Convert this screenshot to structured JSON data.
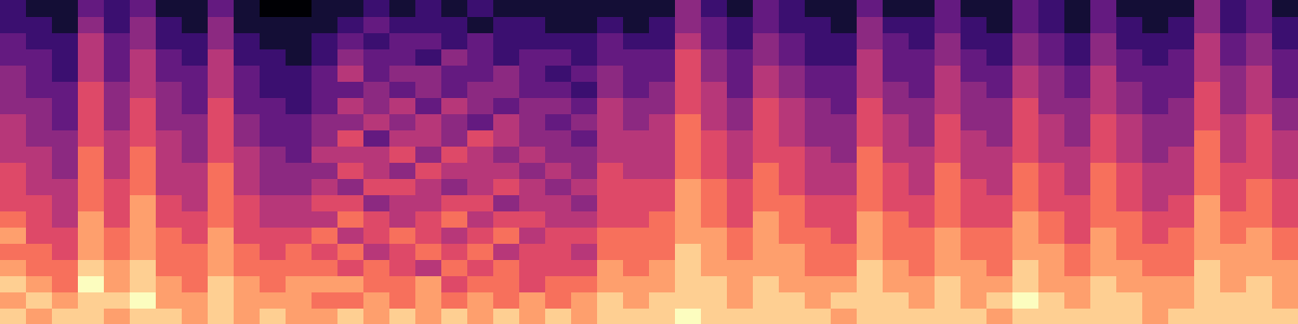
{
  "chart_data": {
    "type": "heatmap",
    "color": "magma",
    "tick_labels": false,
    "zlim": [
      0,
      10
    ],
    "values": [
      [
        9,
        8,
        9,
        8,
        7,
        8,
        7,
        6,
        6,
        6,
        5,
        5,
        5,
        4,
        4,
        4,
        3,
        3,
        2,
        2
      ],
      [
        8,
        9,
        8,
        7,
        7,
        6,
        6,
        6,
        5,
        5,
        5,
        4,
        4,
        4,
        3,
        3,
        3,
        2,
        2,
        1
      ],
      [
        9,
        8,
        7,
        7,
        6,
        6,
        5,
        5,
        5,
        4,
        4,
        4,
        3,
        3,
        3,
        2,
        2,
        2,
        1,
        1
      ],
      [
        9,
        9,
        10,
        9,
        8,
        8,
        8,
        7,
        7,
        7,
        7,
        6,
        6,
        6,
        6,
        5,
        5,
        5,
        4,
        3
      ],
      [
        8,
        9,
        8,
        8,
        7,
        7,
        6,
        6,
        6,
        5,
        5,
        5,
        4,
        4,
        4,
        3,
        3,
        3,
        2,
        2
      ],
      [
        9,
        10,
        9,
        9,
        8,
        8,
        8,
        8,
        7,
        7,
        7,
        6,
        6,
        6,
        5,
        5,
        5,
        4,
        4,
        3
      ],
      [
        9,
        8,
        8,
        7,
        7,
        7,
        6,
        6,
        5,
        5,
        5,
        5,
        4,
        4,
        4,
        3,
        3,
        2,
        2,
        1
      ],
      [
        8,
        8,
        7,
        7,
        7,
        6,
        6,
        5,
        5,
        5,
        4,
        4,
        4,
        3,
        3,
        3,
        2,
        2,
        1,
        1
      ],
      [
        9,
        9,
        9,
        8,
        8,
        8,
        7,
        7,
        7,
        7,
        6,
        6,
        6,
        6,
        5,
        5,
        5,
        4,
        4,
        3
      ],
      [
        8,
        8,
        8,
        7,
        7,
        6,
        6,
        6,
        5,
        5,
        5,
        4,
        4,
        3,
        3,
        3,
        2,
        2,
        1,
        1
      ],
      [
        9,
        8,
        7,
        7,
        6,
        6,
        5,
        5,
        4,
        4,
        4,
        3,
        3,
        3,
        2,
        2,
        2,
        1,
        1,
        0
      ],
      [
        8,
        8,
        8,
        7,
        7,
        6,
        5,
        5,
        4,
        4,
        3,
        3,
        3,
        2,
        2,
        2,
        1,
        1,
        1,
        0
      ],
      [
        8,
        7,
        8,
        7,
        6,
        7,
        5,
        6,
        5,
        4,
        5,
        4,
        4,
        3,
        3,
        3,
        2,
        2,
        1,
        1
      ],
      [
        9,
        7,
        8,
        6,
        7,
        5,
        7,
        6,
        4,
        6,
        5,
        6,
        4,
        5,
        3,
        5,
        4,
        3,
        2,
        1
      ],
      [
        8,
        8,
        7,
        7,
        5,
        6,
        6,
        4,
        6,
        5,
        5,
        3,
        5,
        4,
        4,
        3,
        3,
        2,
        3,
        2
      ],
      [
        9,
        7,
        7,
        6,
        6,
        7,
        5,
        5,
        6,
        4,
        6,
        5,
        4,
        5,
        3,
        4,
        3,
        3,
        2,
        1
      ],
      [
        8,
        8,
        8,
        5,
        7,
        6,
        6,
        5,
        5,
        6,
        4,
        5,
        5,
        3,
        4,
        4,
        2,
        3,
        2,
        2
      ],
      [
        9,
        7,
        6,
        7,
        6,
        5,
        7,
        6,
        4,
        5,
        6,
        4,
        4,
        5,
        3,
        3,
        4,
        2,
        2,
        1
      ],
      [
        8,
        8,
        7,
        6,
        7,
        6,
        5,
        6,
        5,
        5,
        5,
        6,
        3,
        4,
        4,
        3,
        3,
        3,
        1,
        2
      ],
      [
        9,
        7,
        7,
        7,
        5,
        7,
        6,
        4,
        6,
        5,
        4,
        5,
        5,
        3,
        4,
        4,
        2,
        2,
        2,
        1
      ],
      [
        8,
        8,
        6,
        6,
        6,
        5,
        6,
        5,
        5,
        4,
        5,
        4,
        4,
        4,
        3,
        3,
        3,
        2,
        2,
        1
      ],
      [
        9,
        7,
        7,
        6,
        6,
        6,
        5,
        5,
        4,
        5,
        4,
        4,
        3,
        4,
        3,
        2,
        3,
        2,
        1,
        1
      ],
      [
        8,
        8,
        7,
        6,
        5,
        6,
        5,
        4,
        5,
        4,
        4,
        3,
        4,
        3,
        2,
        3,
        2,
        2,
        1,
        1
      ],
      [
        9,
        9,
        8,
        8,
        7,
        7,
        6,
        6,
        6,
        6,
        5,
        5,
        5,
        5,
        4,
        4,
        3,
        3,
        2,
        1
      ],
      [
        9,
        8,
        8,
        7,
        7,
        7,
        6,
        6,
        6,
        5,
        5,
        5,
        4,
        4,
        3,
        3,
        3,
        2,
        1,
        1
      ],
      [
        9,
        9,
        8,
        8,
        7,
        7,
        7,
        6,
        6,
        5,
        5,
        5,
        5,
        4,
        4,
        3,
        3,
        2,
        2,
        1
      ],
      [
        10,
        9,
        9,
        9,
        9,
        8,
        8,
        8,
        8,
        7,
        7,
        7,
        7,
        6,
        6,
        6,
        6,
        5,
        4,
        4
      ],
      [
        9,
        9,
        9,
        8,
        8,
        8,
        7,
        7,
        7,
        6,
        6,
        6,
        5,
        5,
        5,
        4,
        4,
        3,
        3,
        2
      ],
      [
        9,
        8,
        8,
        8,
        7,
        7,
        6,
        6,
        6,
        5,
        5,
        5,
        4,
        4,
        3,
        3,
        3,
        2,
        2,
        1
      ],
      [
        9,
        9,
        9,
        8,
        8,
        8,
        8,
        7,
        7,
        7,
        6,
        6,
        6,
        6,
        5,
        5,
        4,
        4,
        3,
        3
      ],
      [
        9,
        9,
        8,
        8,
        8,
        7,
        7,
        7,
        6,
        6,
        6,
        5,
        5,
        5,
        4,
        4,
        3,
        3,
        2,
        2
      ],
      [
        9,
        8,
        8,
        7,
        7,
        7,
        6,
        6,
        5,
        5,
        5,
        4,
        4,
        4,
        3,
        3,
        2,
        2,
        2,
        1
      ],
      [
        8,
        9,
        8,
        7,
        7,
        6,
        6,
        6,
        5,
        5,
        4,
        4,
        4,
        3,
        3,
        3,
        2,
        2,
        1,
        1
      ],
      [
        9,
        9,
        9,
        9,
        8,
        8,
        8,
        7,
        7,
        7,
        7,
        6,
        6,
        6,
        5,
        5,
        5,
        4,
        4,
        3
      ],
      [
        9,
        9,
        8,
        8,
        7,
        7,
        7,
        6,
        6,
        6,
        5,
        5,
        5,
        4,
        4,
        3,
        3,
        3,
        2,
        1
      ],
      [
        9,
        8,
        8,
        7,
        7,
        7,
        6,
        6,
        5,
        5,
        5,
        4,
        4,
        4,
        3,
        3,
        3,
        2,
        2,
        1
      ],
      [
        9,
        9,
        9,
        8,
        8,
        8,
        7,
        7,
        7,
        7,
        6,
        6,
        6,
        5,
        5,
        5,
        4,
        4,
        3,
        3
      ],
      [
        9,
        8,
        8,
        8,
        7,
        7,
        6,
        6,
        6,
        5,
        5,
        5,
        4,
        4,
        4,
        3,
        3,
        2,
        2,
        1
      ],
      [
        8,
        9,
        8,
        7,
        7,
        7,
        6,
        6,
        5,
        5,
        5,
        4,
        4,
        4,
        3,
        3,
        2,
        2,
        1,
        1
      ],
      [
        9,
        10,
        9,
        9,
        8,
        8,
        8,
        7,
        7,
        7,
        6,
        6,
        6,
        6,
        5,
        5,
        4,
        4,
        3,
        3
      ],
      [
        9,
        9,
        8,
        8,
        8,
        7,
        7,
        6,
        6,
        6,
        5,
        5,
        5,
        4,
        4,
        4,
        3,
        3,
        2,
        2
      ],
      [
        9,
        8,
        8,
        7,
        7,
        6,
        6,
        6,
        5,
        5,
        5,
        4,
        4,
        4,
        3,
        3,
        2,
        2,
        1,
        1
      ],
      [
        9,
        9,
        9,
        8,
        8,
        8,
        7,
        7,
        7,
        7,
        6,
        6,
        6,
        5,
        5,
        5,
        4,
        4,
        3,
        3
      ],
      [
        9,
        9,
        8,
        8,
        7,
        7,
        7,
        6,
        6,
        6,
        5,
        5,
        5,
        4,
        4,
        3,
        3,
        2,
        2,
        1
      ],
      [
        8,
        8,
        8,
        7,
        7,
        6,
        6,
        5,
        5,
        5,
        4,
        4,
        4,
        3,
        3,
        3,
        2,
        2,
        1,
        1
      ],
      [
        9,
        8,
        8,
        7,
        7,
        7,
        6,
        6,
        5,
        5,
        5,
        4,
        4,
        4,
        3,
        3,
        3,
        2,
        2,
        1
      ],
      [
        9,
        9,
        9,
        9,
        8,
        8,
        8,
        8,
        7,
        7,
        7,
        7,
        6,
        6,
        6,
        5,
        5,
        5,
        4,
        4
      ],
      [
        9,
        9,
        8,
        8,
        8,
        7,
        7,
        6,
        6,
        6,
        5,
        5,
        5,
        4,
        4,
        4,
        3,
        3,
        2,
        2
      ],
      [
        9,
        9,
        9,
        8,
        8,
        8,
        7,
        7,
        7,
        6,
        6,
        6,
        6,
        5,
        5,
        5,
        4,
        4,
        3,
        3
      ],
      [
        9,
        8,
        8,
        8,
        7,
        7,
        6,
        6,
        6,
        5,
        5,
        5,
        4,
        4,
        3,
        3,
        3,
        2,
        2,
        1
      ]
    ]
  }
}
